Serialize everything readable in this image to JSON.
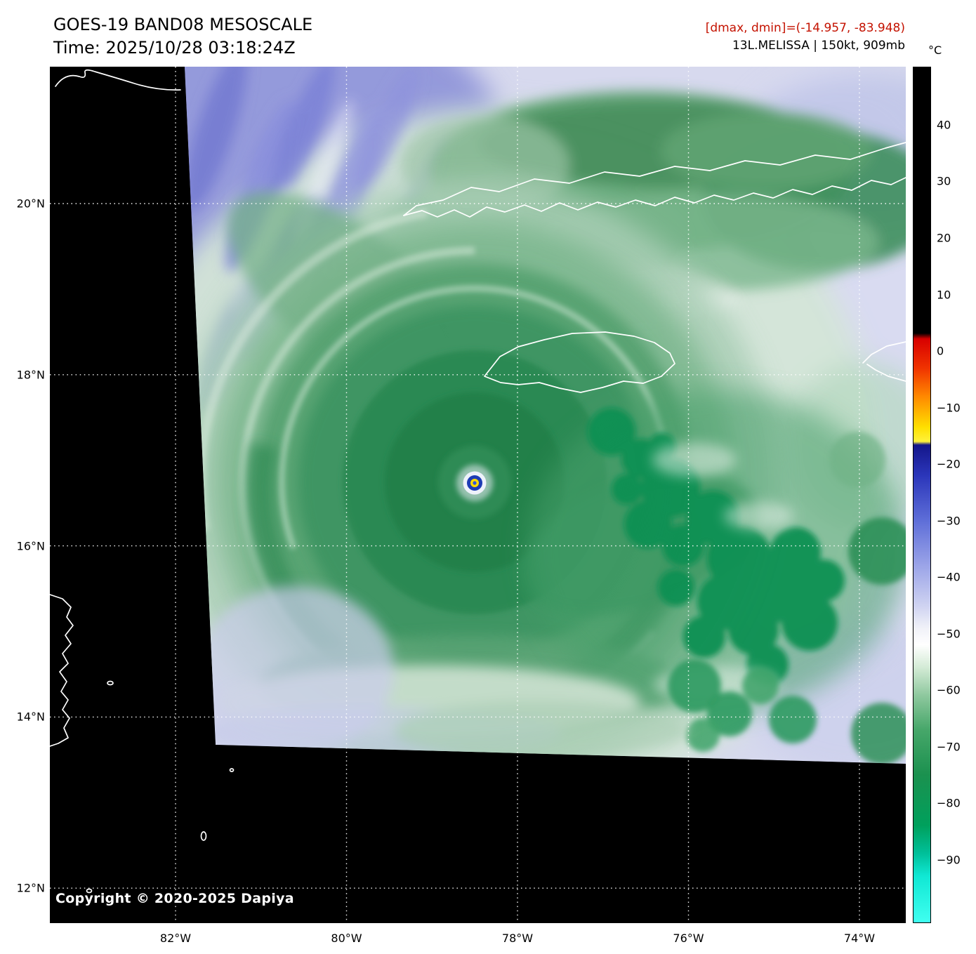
{
  "header": {
    "title": "GOES-19 BAND08 MESOSCALE",
    "time_line": "Time: 2025/10/28 03:18:24Z",
    "dmax_dmin": "[dmax, dmin]=(-14.957, -83.948)",
    "dmax_dmin_color": "#c41200",
    "storm_info": "13L.MELISSA | 150kt, 909mb"
  },
  "colorbar": {
    "unit": "°C",
    "value_range": [
      50.3,
      -101.2
    ],
    "ticks": [
      {
        "label": "40",
        "value": 40
      },
      {
        "label": "30",
        "value": 30
      },
      {
        "label": "20",
        "value": 20
      },
      {
        "label": "10",
        "value": 10
      },
      {
        "label": "0",
        "value": 0
      },
      {
        "label": "−10",
        "value": -10
      },
      {
        "label": "−20",
        "value": -20
      },
      {
        "label": "−30",
        "value": -30
      },
      {
        "label": "−40",
        "value": -40
      },
      {
        "label": "−50",
        "value": -50
      },
      {
        "label": "−60",
        "value": -60
      },
      {
        "label": "−70",
        "value": -70
      },
      {
        "label": "−80",
        "value": -80
      },
      {
        "label": "−90",
        "value": -90
      }
    ],
    "stops": [
      {
        "value": 50.3,
        "color": "#000000"
      },
      {
        "value": 3.2,
        "color": "#000000"
      },
      {
        "value": 2.2,
        "color": "#d80000"
      },
      {
        "value": -3,
        "color": "#f03300"
      },
      {
        "value": -8,
        "color": "#ff8800"
      },
      {
        "value": -13.5,
        "color": "#ffe000"
      },
      {
        "value": -16,
        "color": "#fff23c"
      },
      {
        "value": -16.6,
        "color": "#14168a"
      },
      {
        "value": -22,
        "color": "#2b36ba"
      },
      {
        "value": -30,
        "color": "#5e6ed8"
      },
      {
        "value": -38,
        "color": "#9ba4e8"
      },
      {
        "value": -45,
        "color": "#ced2f1"
      },
      {
        "value": -49,
        "color": "#f0f1f8"
      },
      {
        "value": -52,
        "color": "#ffffff"
      },
      {
        "value": -56,
        "color": "#d4ebd6"
      },
      {
        "value": -61,
        "color": "#8ec89e"
      },
      {
        "value": -67,
        "color": "#47a76a"
      },
      {
        "value": -75,
        "color": "#1b914f"
      },
      {
        "value": -84,
        "color": "#00a05c"
      },
      {
        "value": -89,
        "color": "#00c09a"
      },
      {
        "value": -93,
        "color": "#10e8d4"
      },
      {
        "value": -101.2,
        "color": "#40fff0"
      }
    ]
  },
  "axes": {
    "lat": [
      {
        "label": "20°N",
        "deg": 20
      },
      {
        "label": "18°N",
        "deg": 18
      },
      {
        "label": "16°N",
        "deg": 16
      },
      {
        "label": "14°N",
        "deg": 14
      },
      {
        "label": "12°N",
        "deg": 12
      }
    ],
    "lon": [
      {
        "label": "82°W",
        "deg": 82
      },
      {
        "label": "80°W",
        "deg": 80
      },
      {
        "label": "78°W",
        "deg": 78
      },
      {
        "label": "76°W",
        "deg": 76
      },
      {
        "label": "74°W",
        "deg": 74
      }
    ]
  },
  "map": {
    "copyright": "Copyright © 2020-2025 Dapiya"
  }
}
